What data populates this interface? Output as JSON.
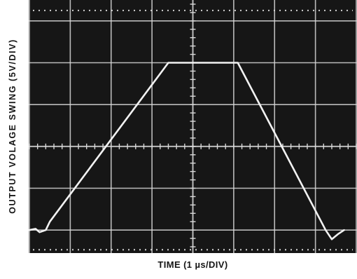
{
  "chart_data": {
    "type": "line",
    "title": "",
    "xlabel": "TIME (1 µs/DIV)",
    "ylabel": "OUTPUT VOLAGE SWING (5V/DIV)",
    "xlim": [
      0,
      8
    ],
    "ylim": [
      -0.55,
      5.5
    ],
    "grid": true,
    "series": [
      {
        "values": [
          {
            "x": 0.0,
            "y": 0.0
          },
          {
            "x": 0.15,
            "y": 0.03
          },
          {
            "x": 0.25,
            "y": -0.05
          },
          {
            "x": 0.4,
            "y": 0.0
          },
          {
            "x": 0.5,
            "y": 0.2
          },
          {
            "x": 3.4,
            "y": 4.0
          },
          {
            "x": 5.1,
            "y": 4.0
          },
          {
            "x": 7.25,
            "y": 0.0
          },
          {
            "x": 7.4,
            "y": -0.22
          },
          {
            "x": 7.55,
            "y": -0.1
          },
          {
            "x": 7.7,
            "y": 0.0
          }
        ]
      }
    ],
    "colors": {
      "screen": "#161616",
      "grid": "#d8d8d8",
      "trace": "#f2f2f2",
      "text": "#151515"
    }
  }
}
